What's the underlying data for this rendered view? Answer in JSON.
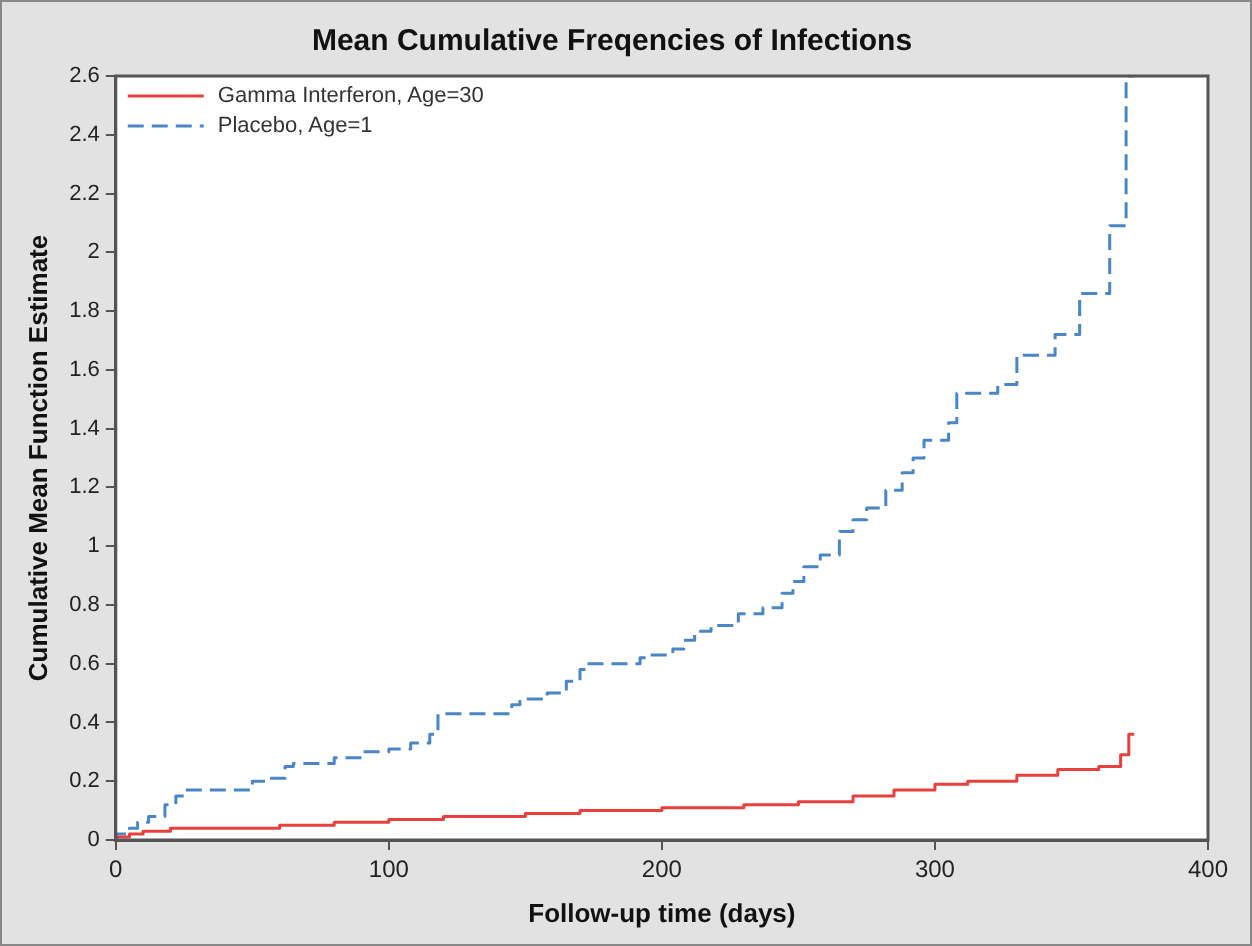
{
  "chart_data": {
    "type": "step",
    "title": "Mean Cumulative Freqencies of Infections",
    "xlabel": "Follow-up time (days)",
    "ylabel": "Cumulative Mean Function Estimate",
    "xlim": [
      0,
      400
    ],
    "xticks": [
      0,
      100,
      200,
      300,
      400
    ],
    "ylim": [
      0,
      2.6
    ],
    "yticks": [
      0,
      0.2,
      0.4,
      0.6,
      0.8,
      1,
      1.2,
      1.4,
      1.6,
      1.8,
      2,
      2.2,
      2.4,
      2.6
    ],
    "grid": false,
    "legend": "top left",
    "series": [
      {
        "name": "Gamma Interferon, Age=30",
        "color": "#e8403f",
        "line_style": "solid",
        "x": [
          0,
          5,
          10,
          20,
          60,
          80,
          100,
          120,
          150,
          170,
          200,
          230,
          250,
          270,
          285,
          300,
          312,
          330,
          345,
          360,
          368,
          371,
          373
        ],
        "values": [
          0,
          0.01,
          0.02,
          0.03,
          0.04,
          0.05,
          0.06,
          0.07,
          0.08,
          0.09,
          0.1,
          0.11,
          0.12,
          0.13,
          0.15,
          0.17,
          0.19,
          0.2,
          0.22,
          0.24,
          0.25,
          0.29,
          0.36
        ]
      },
      {
        "name": "Placebo, Age=1",
        "color": "#4a86c6",
        "line_style": "dashed",
        "x": [
          0,
          5,
          8,
          12,
          18,
          22,
          25,
          28,
          50,
          55,
          62,
          65,
          80,
          90,
          100,
          108,
          115,
          118,
          120,
          145,
          148,
          158,
          165,
          170,
          172,
          192,
          195,
          204,
          208,
          212,
          218,
          228,
          237,
          244,
          248,
          252,
          258,
          265,
          270,
          275,
          282,
          288,
          292,
          296,
          305,
          308,
          323,
          330,
          338,
          344,
          353,
          364,
          370,
          373
        ],
        "values": [
          0,
          0.02,
          0.04,
          0.06,
          0.08,
          0.12,
          0.15,
          0.17,
          0.17,
          0.2,
          0.21,
          0.25,
          0.26,
          0.28,
          0.3,
          0.31,
          0.33,
          0.36,
          0.43,
          0.43,
          0.46,
          0.48,
          0.5,
          0.54,
          0.58,
          0.6,
          0.62,
          0.63,
          0.65,
          0.68,
          0.71,
          0.73,
          0.77,
          0.79,
          0.84,
          0.88,
          0.93,
          0.97,
          1.05,
          1.09,
          1.13,
          1.19,
          1.25,
          1.3,
          1.36,
          1.42,
          1.52,
          1.55,
          1.65,
          1.65,
          1.72,
          1.86,
          2.09,
          2.6
        ]
      }
    ]
  }
}
